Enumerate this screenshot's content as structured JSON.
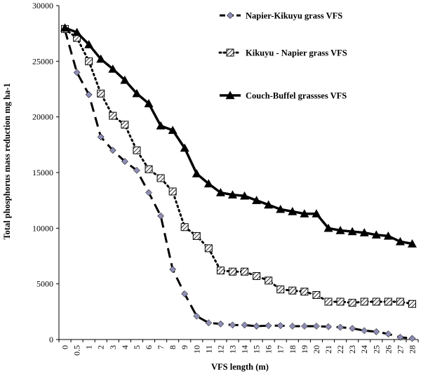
{
  "chart_data": {
    "type": "line",
    "xlabel": "VFS length (m)",
    "ylabel": "Total phosphorus  mass reduction  mg ha-1",
    "ylim": [
      0,
      30000
    ],
    "yticks": [
      "0",
      "5000",
      "10000",
      "15000",
      "20000",
      "25000",
      "30000"
    ],
    "categories": [
      "0",
      "0.5",
      "1",
      "2",
      "3",
      "4",
      "5",
      "6",
      "7",
      "8",
      "9",
      "10",
      "11",
      "12",
      "13",
      "14",
      "15",
      "16",
      "17",
      "18",
      "19",
      "20",
      "21",
      "22",
      "23",
      "24",
      "25",
      "26",
      "27",
      "28"
    ],
    "grid": false,
    "legend_position": "top-right",
    "series": [
      {
        "name": "Napier-Kikuyu grass VFS",
        "line_style": "long-dash",
        "marker": "diamond",
        "values": [
          27800,
          24000,
          22000,
          18200,
          17000,
          16000,
          15200,
          13200,
          11100,
          6300,
          4100,
          2100,
          1500,
          1400,
          1300,
          1300,
          1200,
          1250,
          1250,
          1200,
          1200,
          1200,
          1150,
          1100,
          1000,
          800,
          700,
          500,
          200,
          100
        ]
      },
      {
        "name": "Kikuyu - Napier grass VFS",
        "line_style": "dotted",
        "marker": "hatched-square",
        "values": [
          27900,
          27100,
          25000,
          22100,
          20100,
          19300,
          17000,
          15300,
          14500,
          13300,
          10100,
          9300,
          8200,
          6200,
          6100,
          6100,
          5700,
          5300,
          4500,
          4400,
          4300,
          4000,
          3400,
          3400,
          3300,
          3400,
          3400,
          3400,
          3400,
          3200
        ]
      },
      {
        "name": "Couch-Buffel grassses VFS",
        "line_style": "solid",
        "marker": "triangle",
        "values": [
          28000,
          27600,
          26500,
          25200,
          24300,
          23300,
          22100,
          21200,
          19200,
          18800,
          17200,
          14900,
          14000,
          13200,
          13000,
          12900,
          12500,
          12100,
          11700,
          11500,
          11300,
          11300,
          10000,
          9800,
          9700,
          9600,
          9400,
          9300,
          8800,
          8600
        ]
      }
    ]
  }
}
